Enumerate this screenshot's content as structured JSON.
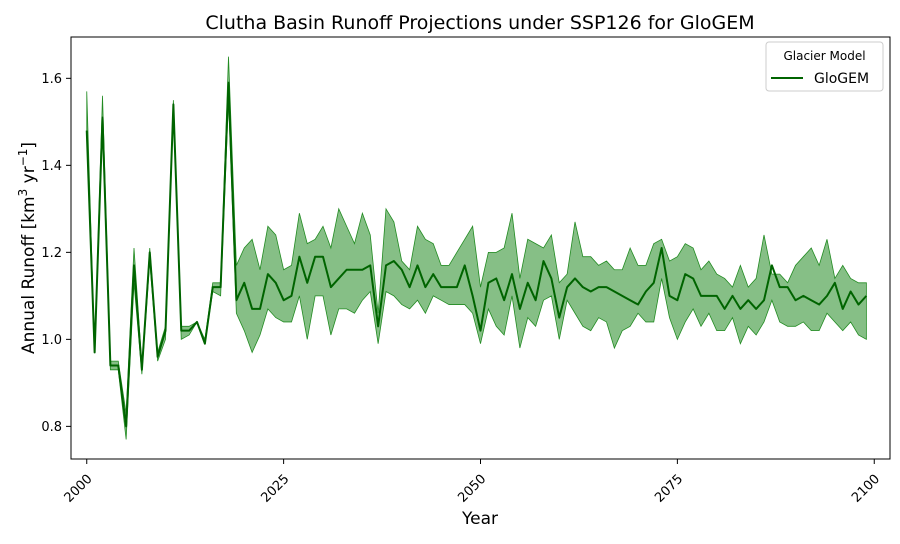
{
  "chart_data": {
    "type": "line",
    "title": "Clutha Basin Runoff Projections under SSP126 for GloGEM",
    "xlabel": "Year",
    "ylabel": "Annual Runoff [km³ yr⁻¹]",
    "xlim": [
      1998,
      2102
    ],
    "ylim": [
      0.725,
      1.695
    ],
    "xticks": [
      2000,
      2025,
      2050,
      2075,
      2100
    ],
    "yticks": [
      0.8,
      1.0,
      1.2,
      1.4,
      1.6
    ],
    "ytick_labels": [
      "0.8",
      "1.0",
      "1.2",
      "1.4",
      "1.6"
    ],
    "grid": false,
    "legend": {
      "title": "Glacier Model",
      "placement": "top-right"
    },
    "series": [
      {
        "name": "GloGEM",
        "color": "#006400",
        "band_color": "#228B22",
        "band_opacity": 0.55,
        "x": [
          2000,
          2001,
          2002,
          2003,
          2004,
          2005,
          2006,
          2007,
          2008,
          2009,
          2010,
          2011,
          2012,
          2013,
          2014,
          2015,
          2016,
          2017,
          2018,
          2019,
          2020,
          2021,
          2022,
          2023,
          2024,
          2025,
          2026,
          2027,
          2028,
          2029,
          2030,
          2031,
          2032,
          2033,
          2034,
          2035,
          2036,
          2037,
          2038,
          2039,
          2040,
          2041,
          2042,
          2043,
          2044,
          2045,
          2046,
          2047,
          2048,
          2049,
          2050,
          2051,
          2052,
          2053,
          2054,
          2055,
          2056,
          2057,
          2058,
          2059,
          2060,
          2061,
          2062,
          2063,
          2064,
          2065,
          2066,
          2067,
          2068,
          2069,
          2070,
          2071,
          2072,
          2073,
          2074,
          2075,
          2076,
          2077,
          2078,
          2079,
          2080,
          2081,
          2082,
          2083,
          2084,
          2085,
          2086,
          2087,
          2088,
          2089,
          2090,
          2091,
          2092,
          2093,
          2094,
          2095,
          2096,
          2097,
          2098,
          2099
        ],
        "mean": [
          1.48,
          0.97,
          1.51,
          0.94,
          0.94,
          0.8,
          1.17,
          0.93,
          1.2,
          0.96,
          1.02,
          1.54,
          1.02,
          1.02,
          1.04,
          0.99,
          1.12,
          1.12,
          1.59,
          1.09,
          1.13,
          1.07,
          1.07,
          1.15,
          1.13,
          1.09,
          1.1,
          1.19,
          1.13,
          1.19,
          1.19,
          1.12,
          1.14,
          1.16,
          1.16,
          1.16,
          1.17,
          1.03,
          1.17,
          1.18,
          1.16,
          1.12,
          1.17,
          1.12,
          1.15,
          1.12,
          1.12,
          1.12,
          1.17,
          1.1,
          1.02,
          1.13,
          1.14,
          1.09,
          1.15,
          1.07,
          1.13,
          1.09,
          1.18,
          1.14,
          1.05,
          1.12,
          1.14,
          1.12,
          1.11,
          1.12,
          1.12,
          1.11,
          1.1,
          1.09,
          1.08,
          1.11,
          1.13,
          1.21,
          1.1,
          1.09,
          1.15,
          1.14,
          1.1,
          1.1,
          1.1,
          1.07,
          1.1,
          1.07,
          1.09,
          1.07,
          1.09,
          1.17,
          1.12,
          1.12,
          1.09,
          1.1,
          1.09,
          1.08,
          1.1,
          1.13,
          1.07,
          1.11,
          1.08,
          1.1
        ],
        "upper": [
          1.57,
          0.97,
          1.56,
          0.95,
          0.95,
          0.83,
          1.21,
          0.94,
          1.21,
          0.97,
          1.03,
          1.55,
          1.03,
          1.03,
          1.04,
          1.0,
          1.13,
          1.13,
          1.65,
          1.17,
          1.21,
          1.23,
          1.16,
          1.26,
          1.24,
          1.16,
          1.17,
          1.29,
          1.22,
          1.23,
          1.26,
          1.21,
          1.3,
          1.26,
          1.22,
          1.29,
          1.24,
          1.06,
          1.3,
          1.27,
          1.18,
          1.16,
          1.26,
          1.23,
          1.22,
          1.17,
          1.17,
          1.2,
          1.23,
          1.26,
          1.12,
          1.2,
          1.2,
          1.21,
          1.29,
          1.14,
          1.23,
          1.22,
          1.21,
          1.24,
          1.13,
          1.15,
          1.27,
          1.19,
          1.19,
          1.17,
          1.18,
          1.16,
          1.16,
          1.21,
          1.17,
          1.17,
          1.22,
          1.23,
          1.18,
          1.19,
          1.22,
          1.21,
          1.16,
          1.18,
          1.15,
          1.14,
          1.12,
          1.17,
          1.12,
          1.14,
          1.24,
          1.15,
          1.15,
          1.13,
          1.17,
          1.19,
          1.21,
          1.17,
          1.23,
          1.14,
          1.17,
          1.14,
          1.13,
          1.13
        ],
        "lower": [
          1.47,
          0.97,
          1.5,
          0.93,
          0.93,
          0.77,
          1.13,
          0.92,
          1.18,
          0.95,
          1.0,
          1.53,
          1.0,
          1.01,
          1.04,
          0.99,
          1.11,
          1.1,
          1.55,
          1.06,
          1.02,
          0.97,
          1.01,
          1.07,
          1.05,
          1.04,
          1.04,
          1.1,
          1.0,
          1.1,
          1.1,
          1.01,
          1.07,
          1.07,
          1.06,
          1.09,
          1.11,
          0.99,
          1.11,
          1.1,
          1.08,
          1.07,
          1.09,
          1.06,
          1.1,
          1.09,
          1.08,
          1.08,
          1.08,
          1.06,
          0.99,
          1.07,
          1.03,
          1.01,
          1.1,
          0.98,
          1.05,
          1.03,
          1.09,
          1.1,
          1.0,
          1.09,
          1.06,
          1.03,
          1.02,
          1.05,
          1.04,
          0.98,
          1.02,
          1.03,
          1.06,
          1.04,
          1.04,
          1.14,
          1.05,
          1.0,
          1.04,
          1.07,
          1.03,
          1.06,
          1.02,
          1.02,
          1.05,
          0.99,
          1.03,
          1.01,
          1.04,
          1.09,
          1.04,
          1.03,
          1.03,
          1.04,
          1.02,
          1.02,
          1.06,
          1.04,
          1.02,
          1.04,
          1.01,
          1.0
        ]
      }
    ]
  }
}
